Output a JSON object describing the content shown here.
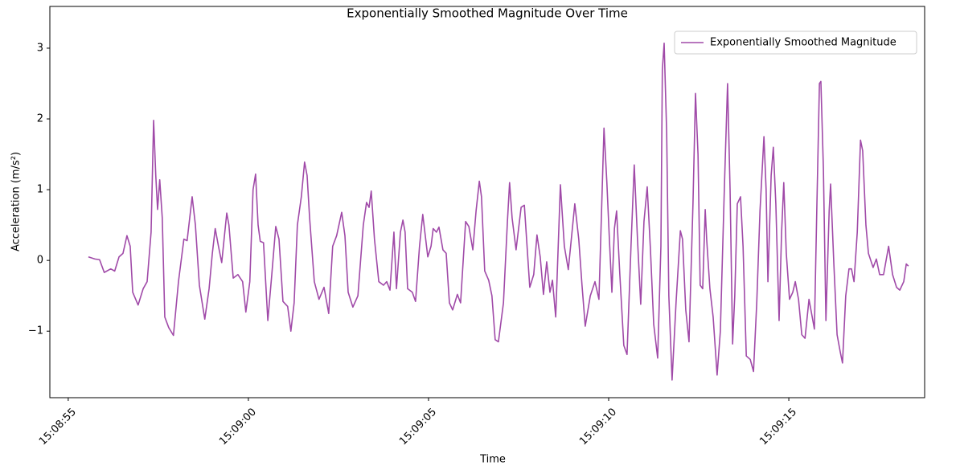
{
  "chart_data": {
    "type": "line",
    "title": "Exponentially Smoothed Magnitude Over Time",
    "x_label": "Time",
    "y_label": "Acceleration (m/s²)",
    "legend": "upper right",
    "xlim": [
      54534.49,
      54558.77
    ],
    "xticks": [
      {
        "value": 54535,
        "label": "15:08:55"
      },
      {
        "value": 54540,
        "label": "15:09:00"
      },
      {
        "value": 54545,
        "label": "15:09:05"
      },
      {
        "value": 54550,
        "label": "15:09:10"
      },
      {
        "value": 54555,
        "label": "15:09:15"
      }
    ],
    "ylim": [
      -1.94,
      3.59
    ],
    "yticks": [
      {
        "value": -1,
        "label": "−1"
      },
      0,
      1,
      2,
      3
    ],
    "x": [
      54535.56,
      54535.74,
      54535.87,
      54536.0,
      54536.18,
      54536.29,
      54536.41,
      54536.52,
      54536.63,
      54536.72,
      54536.79,
      54536.94,
      54537.08,
      54537.19,
      54537.3,
      54537.37,
      54537.43,
      54537.48,
      54537.54,
      54537.61,
      54537.68,
      54537.79,
      54537.92,
      54538.06,
      54538.21,
      54538.3,
      54538.44,
      54538.53,
      54538.64,
      54538.79,
      54538.91,
      54539.0,
      54539.08,
      54539.17,
      54539.26,
      54539.4,
      54539.46,
      54539.58,
      54539.71,
      54539.84,
      54539.93,
      54540.04,
      54540.13,
      54540.2,
      54540.27,
      54540.33,
      54540.42,
      54540.54,
      54540.65,
      54540.76,
      54540.85,
      54540.96,
      54541.09,
      54541.18,
      54541.27,
      54541.36,
      54541.47,
      54541.56,
      54541.63,
      54541.7,
      54541.83,
      54541.96,
      54542.1,
      54542.23,
      54542.34,
      54542.45,
      54542.59,
      54542.68,
      54542.77,
      54542.9,
      54543.04,
      54543.19,
      54543.28,
      54543.35,
      54543.41,
      54543.5,
      54543.62,
      54543.75,
      54543.84,
      54543.93,
      54544.04,
      54544.11,
      54544.22,
      54544.29,
      54544.35,
      54544.42,
      54544.55,
      54544.64,
      54544.75,
      54544.84,
      54544.98,
      54545.07,
      54545.13,
      54545.22,
      54545.29,
      54545.4,
      54545.49,
      54545.58,
      54545.67,
      54545.8,
      54545.89,
      54546.03,
      54546.12,
      54546.23,
      54546.32,
      54546.41,
      54546.47,
      54546.56,
      54546.67,
      54546.76,
      54546.85,
      54546.94,
      54547.08,
      54547.19,
      54547.25,
      54547.32,
      54547.43,
      54547.57,
      54547.66,
      54547.81,
      54547.92,
      54548.01,
      54548.1,
      54548.19,
      54548.28,
      54548.37,
      54548.44,
      54548.53,
      54548.66,
      54548.77,
      54548.88,
      54549.06,
      54549.17,
      54549.26,
      54549.35,
      54549.49,
      54549.62,
      54549.73,
      54549.82,
      54549.87,
      54549.95,
      54550.02,
      54550.09,
      54550.16,
      54550.22,
      54550.31,
      54550.42,
      54550.51,
      54550.62,
      54550.71,
      54550.8,
      54550.89,
      54550.98,
      54551.07,
      54551.16,
      54551.25,
      54551.36,
      54551.45,
      54551.49,
      54551.54,
      54551.61,
      54551.67,
      54551.76,
      54551.87,
      54551.99,
      54552.05,
      54552.14,
      54552.23,
      54552.34,
      54552.41,
      54552.48,
      54552.54,
      54552.61,
      54552.68,
      54552.72,
      54552.81,
      54552.9,
      54553.01,
      54553.1,
      54553.21,
      54553.3,
      54553.37,
      54553.44,
      54553.5,
      54553.57,
      54553.66,
      54553.73,
      54553.82,
      54553.93,
      54554.02,
      54554.11,
      54554.2,
      54554.31,
      54554.37,
      54554.42,
      54554.51,
      54554.57,
      54554.64,
      54554.73,
      54554.8,
      54554.86,
      54554.93,
      54555.02,
      54555.11,
      54555.18,
      54555.27,
      54555.36,
      54555.45,
      54555.56,
      54555.65,
      54555.71,
      54555.78,
      54555.85,
      54555.89,
      54555.96,
      54556.03,
      54556.12,
      54556.16,
      54556.25,
      54556.34,
      54556.43,
      54556.49,
      54556.58,
      54556.67,
      54556.74,
      54556.81,
      54556.9,
      54556.99,
      54557.05,
      54557.14,
      54557.21,
      54557.34,
      54557.43,
      54557.52,
      54557.63,
      54557.77,
      54557.88,
      54557.99,
      54558.08,
      54558.19,
      54558.26,
      54558.32
    ],
    "series": [
      {
        "name": "Exponentially Smoothed Magnitude",
        "color": "#a04aa8",
        "values": [
          0.05,
          0.02,
          0.01,
          -0.17,
          -0.12,
          -0.15,
          0.05,
          0.1,
          0.35,
          0.2,
          -0.45,
          -0.63,
          -0.4,
          -0.3,
          0.4,
          1.98,
          1.2,
          0.72,
          1.14,
          0.6,
          -0.8,
          -0.95,
          -1.06,
          -0.3,
          0.3,
          0.28,
          0.9,
          0.5,
          -0.35,
          -0.83,
          -0.4,
          0.1,
          0.45,
          0.2,
          -0.03,
          0.67,
          0.5,
          -0.25,
          -0.2,
          -0.3,
          -0.73,
          -0.3,
          1.0,
          1.22,
          0.5,
          0.27,
          0.25,
          -0.85,
          -0.2,
          0.48,
          0.3,
          -0.58,
          -0.65,
          -1.0,
          -0.6,
          0.5,
          0.9,
          1.39,
          1.2,
          0.6,
          -0.3,
          -0.55,
          -0.38,
          -0.75,
          0.2,
          0.35,
          0.68,
          0.35,
          -0.45,
          -0.66,
          -0.5,
          0.5,
          0.82,
          0.75,
          0.98,
          0.3,
          -0.3,
          -0.35,
          -0.3,
          -0.42,
          0.4,
          -0.4,
          0.4,
          0.57,
          0.4,
          -0.4,
          -0.45,
          -0.58,
          0.2,
          0.65,
          0.05,
          0.2,
          0.45,
          0.4,
          0.47,
          0.15,
          0.1,
          -0.6,
          -0.7,
          -0.48,
          -0.6,
          0.55,
          0.48,
          0.15,
          0.7,
          1.12,
          0.9,
          -0.15,
          -0.28,
          -0.5,
          -1.12,
          -1.15,
          -0.6,
          0.55,
          1.1,
          0.6,
          0.15,
          0.75,
          0.78,
          -0.38,
          -0.2,
          0.36,
          0.05,
          -0.48,
          -0.02,
          -0.45,
          -0.28,
          -0.8,
          1.07,
          0.2,
          -0.13,
          0.8,
          0.3,
          -0.35,
          -0.93,
          -0.5,
          -0.3,
          -0.55,
          1.0,
          1.87,
          1.1,
          0.3,
          -0.45,
          0.45,
          0.7,
          -0.2,
          -1.2,
          -1.33,
          0.2,
          1.35,
          0.3,
          -0.62,
          0.55,
          1.04,
          0.15,
          -0.9,
          -1.38,
          0.2,
          2.7,
          3.07,
          1.8,
          -0.5,
          -1.69,
          -0.6,
          0.42,
          0.3,
          -0.7,
          -1.15,
          0.8,
          2.36,
          1.5,
          -0.35,
          -0.4,
          0.72,
          0.3,
          -0.4,
          -0.8,
          -1.62,
          -1.0,
          1.0,
          2.5,
          1.0,
          -1.18,
          -0.5,
          0.8,
          0.9,
          0.2,
          -1.35,
          -1.4,
          -1.57,
          -0.6,
          0.7,
          1.75,
          1.0,
          -0.3,
          1.2,
          1.6,
          0.8,
          -0.85,
          0.4,
          1.1,
          0.1,
          -0.55,
          -0.45,
          -0.3,
          -0.55,
          -1.05,
          -1.1,
          -0.55,
          -0.8,
          -0.97,
          0.8,
          2.5,
          2.53,
          1.3,
          -0.85,
          0.7,
          1.08,
          -0.05,
          -1.05,
          -1.3,
          -1.45,
          -0.5,
          -0.12,
          -0.12,
          -0.3,
          0.4,
          1.7,
          1.55,
          0.5,
          0.1,
          -0.1,
          0.02,
          -0.2,
          -0.2,
          0.2,
          -0.2,
          -0.38,
          -0.42,
          -0.3,
          -0.05,
          -0.08
        ]
      }
    ]
  }
}
